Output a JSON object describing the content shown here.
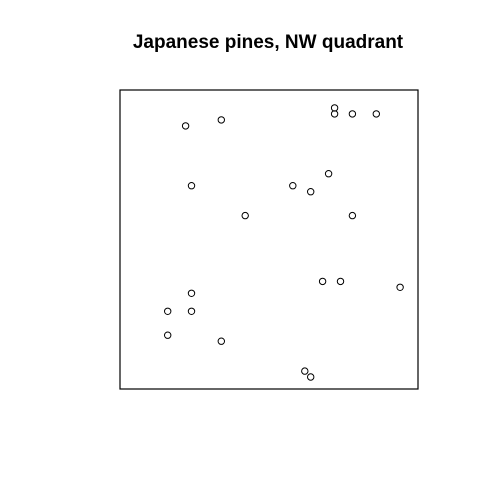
{
  "chart_data": {
    "type": "scatter",
    "title": "Japanese pines, NW quadrant",
    "xlabel": "",
    "ylabel": "",
    "xlim": [
      0,
      5
    ],
    "ylim": [
      0,
      5
    ],
    "axes_visible": false,
    "grid": false,
    "legend": "none",
    "marker": "open-circle",
    "point_color": "#000000",
    "points": [
      {
        "x": 3.6,
        "y": 4.7
      },
      {
        "x": 3.6,
        "y": 4.6
      },
      {
        "x": 3.9,
        "y": 4.6
      },
      {
        "x": 4.3,
        "y": 4.6
      },
      {
        "x": 1.1,
        "y": 4.4
      },
      {
        "x": 1.7,
        "y": 4.5
      },
      {
        "x": 1.2,
        "y": 3.4
      },
      {
        "x": 2.9,
        "y": 3.4
      },
      {
        "x": 3.2,
        "y": 3.3
      },
      {
        "x": 3.5,
        "y": 3.6
      },
      {
        "x": 2.1,
        "y": 2.9
      },
      {
        "x": 3.9,
        "y": 2.9
      },
      {
        "x": 3.4,
        "y": 1.8
      },
      {
        "x": 3.7,
        "y": 1.8
      },
      {
        "x": 4.7,
        "y": 1.7
      },
      {
        "x": 1.2,
        "y": 1.6
      },
      {
        "x": 0.8,
        "y": 1.3
      },
      {
        "x": 1.2,
        "y": 1.3
      },
      {
        "x": 0.8,
        "y": 0.9
      },
      {
        "x": 1.7,
        "y": 0.8
      },
      {
        "x": 3.1,
        "y": 0.3
      },
      {
        "x": 3.2,
        "y": 0.2
      }
    ]
  }
}
